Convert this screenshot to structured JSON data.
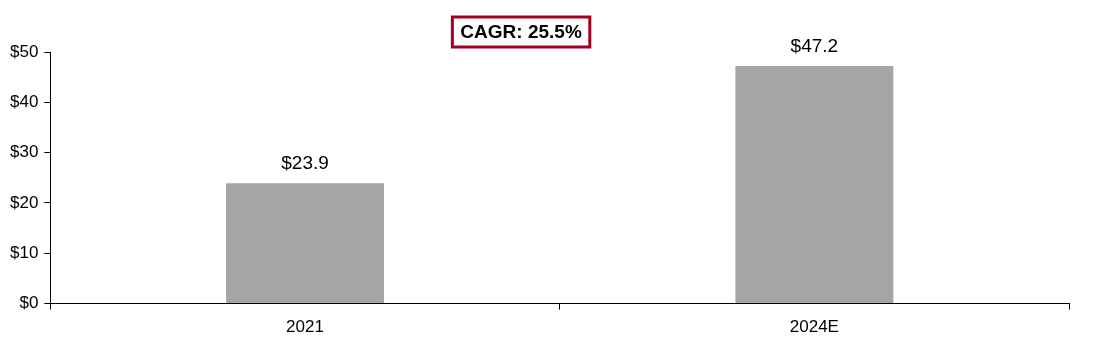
{
  "chart_data": {
    "type": "bar",
    "annotation": "CAGR: 25.5%",
    "categories": [
      "2021",
      "2024E"
    ],
    "values": [
      23.9,
      47.2
    ],
    "value_labels": [
      "$23.9",
      "$47.2"
    ],
    "data_labels": true,
    "color": "#a5a5a5",
    "ylim": [
      0,
      50
    ],
    "yticks": [
      {
        "value": 0,
        "label": "$0"
      },
      {
        "value": 10,
        "label": "$10"
      },
      {
        "value": 20,
        "label": "$20"
      },
      {
        "value": 30,
        "label": "$30"
      },
      {
        "value": 40,
        "label": "$40"
      },
      {
        "value": 50,
        "label": "$50"
      }
    ],
    "grid": false
  }
}
